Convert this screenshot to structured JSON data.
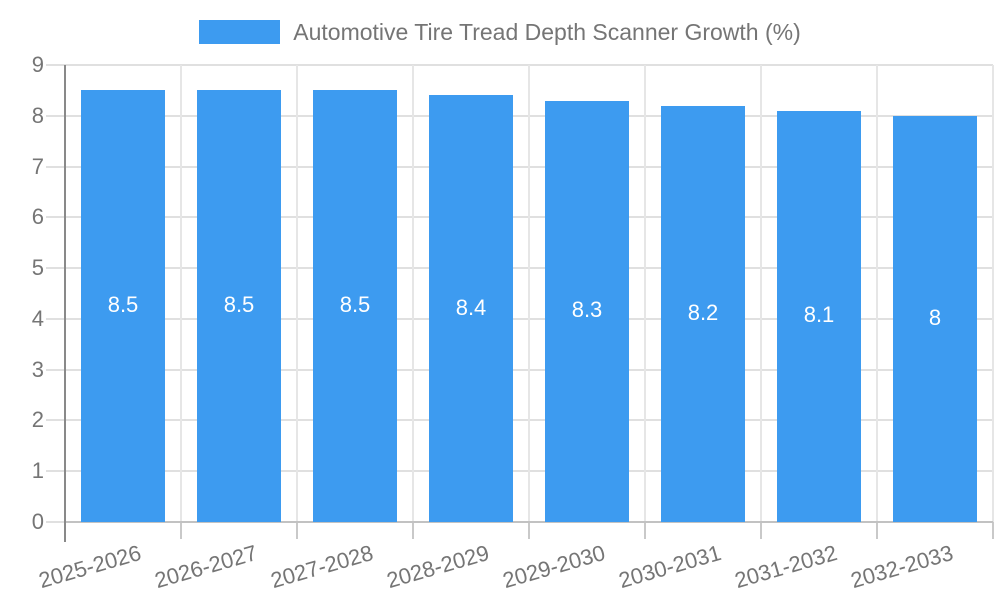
{
  "chart_data": {
    "type": "bar",
    "title": "Automotive Tire Tread Depth Scanner Growth (%)",
    "legend": {
      "label": "Automotive Tire Tread Depth Scanner Growth (%)",
      "position": "top",
      "swatch_color": "#3D9BF0"
    },
    "categories": [
      "2025-2026",
      "2026-2027",
      "2027-2028",
      "2028-2029",
      "2029-2030",
      "2030-2031",
      "2031-2032",
      "2032-2033"
    ],
    "values": [
      8.5,
      8.5,
      8.5,
      8.4,
      8.3,
      8.2,
      8.1,
      8
    ],
    "value_labels": [
      "8.5",
      "8.5",
      "8.5",
      "8.4",
      "8.3",
      "8.2",
      "8.1",
      "8"
    ],
    "xlabel": "",
    "ylabel": "",
    "ylim": [
      0,
      9
    ],
    "y_ticks": [
      0,
      1,
      2,
      3,
      4,
      5,
      6,
      7,
      8,
      9
    ],
    "grid": true,
    "colors": {
      "bar": "#3D9BF0",
      "bar_value_text": "#ffffff",
      "axis_text": "#757575",
      "title_text": "#757575",
      "hgrid": "#e0e0e0",
      "vgrid": "#e6e6e6",
      "baseline": "#c2c2c2",
      "yaxis_line": "#898989",
      "tick": "#c9c9c9"
    }
  }
}
